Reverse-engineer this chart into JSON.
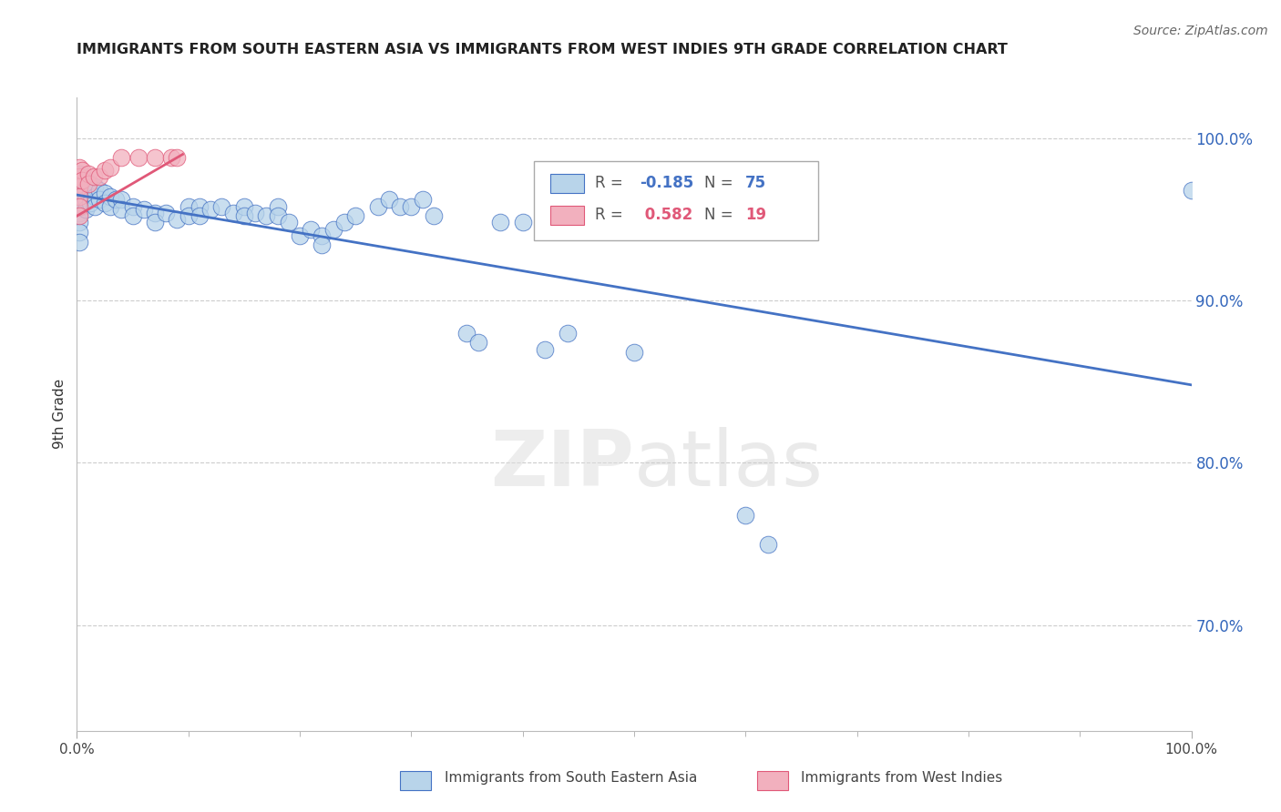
{
  "title": "IMMIGRANTS FROM SOUTH EASTERN ASIA VS IMMIGRANTS FROM WEST INDIES 9TH GRADE CORRELATION CHART",
  "source": "Source: ZipAtlas.com",
  "ylabel": "9th Grade",
  "xlim": [
    0.0,
    1.0
  ],
  "ylim": [
    0.635,
    1.025
  ],
  "ytick_labels": [
    "70.0%",
    "80.0%",
    "90.0%",
    "100.0%"
  ],
  "ytick_values": [
    0.7,
    0.8,
    0.9,
    1.0
  ],
  "xtick_labels": [
    "0.0%",
    "100.0%"
  ],
  "xtick_values": [
    0.0,
    1.0
  ],
  "r_blue": -0.185,
  "n_blue": 75,
  "r_pink": 0.582,
  "n_pink": 19,
  "blue_color": "#b8d4ea",
  "pink_color": "#f2b0be",
  "blue_edge_color": "#4472c4",
  "pink_edge_color": "#e05878",
  "blue_line_color": "#4472c4",
  "pink_line_color": "#e05878",
  "watermark_color": "#d8d8d8",
  "blue_scatter": [
    [
      0.002,
      0.978
    ],
    [
      0.002,
      0.972
    ],
    [
      0.002,
      0.966
    ],
    [
      0.002,
      0.96
    ],
    [
      0.002,
      0.954
    ],
    [
      0.002,
      0.948
    ],
    [
      0.002,
      0.942
    ],
    [
      0.002,
      0.936
    ],
    [
      0.005,
      0.976
    ],
    [
      0.005,
      0.97
    ],
    [
      0.005,
      0.964
    ],
    [
      0.005,
      0.958
    ],
    [
      0.008,
      0.974
    ],
    [
      0.008,
      0.968
    ],
    [
      0.008,
      0.962
    ],
    [
      0.008,
      0.956
    ],
    [
      0.012,
      0.972
    ],
    [
      0.012,
      0.966
    ],
    [
      0.012,
      0.96
    ],
    [
      0.016,
      0.97
    ],
    [
      0.016,
      0.964
    ],
    [
      0.016,
      0.958
    ],
    [
      0.02,
      0.968
    ],
    [
      0.02,
      0.962
    ],
    [
      0.025,
      0.966
    ],
    [
      0.025,
      0.96
    ],
    [
      0.03,
      0.964
    ],
    [
      0.03,
      0.958
    ],
    [
      0.035,
      0.962
    ],
    [
      0.04,
      0.962
    ],
    [
      0.04,
      0.956
    ],
    [
      0.05,
      0.958
    ],
    [
      0.05,
      0.952
    ],
    [
      0.06,
      0.956
    ],
    [
      0.07,
      0.954
    ],
    [
      0.07,
      0.948
    ],
    [
      0.08,
      0.954
    ],
    [
      0.09,
      0.95
    ],
    [
      0.1,
      0.958
    ],
    [
      0.1,
      0.952
    ],
    [
      0.11,
      0.958
    ],
    [
      0.11,
      0.952
    ],
    [
      0.12,
      0.956
    ],
    [
      0.13,
      0.958
    ],
    [
      0.14,
      0.954
    ],
    [
      0.15,
      0.958
    ],
    [
      0.15,
      0.952
    ],
    [
      0.16,
      0.954
    ],
    [
      0.17,
      0.952
    ],
    [
      0.18,
      0.958
    ],
    [
      0.18,
      0.952
    ],
    [
      0.19,
      0.948
    ],
    [
      0.2,
      0.94
    ],
    [
      0.21,
      0.944
    ],
    [
      0.22,
      0.94
    ],
    [
      0.22,
      0.934
    ],
    [
      0.23,
      0.944
    ],
    [
      0.24,
      0.948
    ],
    [
      0.25,
      0.952
    ],
    [
      0.27,
      0.958
    ],
    [
      0.28,
      0.962
    ],
    [
      0.29,
      0.958
    ],
    [
      0.3,
      0.958
    ],
    [
      0.31,
      0.962
    ],
    [
      0.32,
      0.952
    ],
    [
      0.35,
      0.88
    ],
    [
      0.36,
      0.874
    ],
    [
      0.38,
      0.948
    ],
    [
      0.4,
      0.948
    ],
    [
      0.42,
      0.87
    ],
    [
      0.44,
      0.88
    ],
    [
      0.5,
      0.868
    ],
    [
      0.6,
      0.768
    ],
    [
      0.62,
      0.75
    ],
    [
      1.0,
      0.968
    ]
  ],
  "pink_scatter": [
    [
      0.002,
      0.982
    ],
    [
      0.002,
      0.976
    ],
    [
      0.002,
      0.97
    ],
    [
      0.002,
      0.964
    ],
    [
      0.002,
      0.958
    ],
    [
      0.002,
      0.952
    ],
    [
      0.005,
      0.98
    ],
    [
      0.005,
      0.974
    ],
    [
      0.01,
      0.978
    ],
    [
      0.01,
      0.972
    ],
    [
      0.015,
      0.976
    ],
    [
      0.02,
      0.976
    ],
    [
      0.025,
      0.98
    ],
    [
      0.03,
      0.982
    ],
    [
      0.04,
      0.988
    ],
    [
      0.055,
      0.988
    ],
    [
      0.07,
      0.988
    ],
    [
      0.085,
      0.988
    ],
    [
      0.09,
      0.988
    ]
  ],
  "blue_line_x": [
    0.0,
    1.0
  ],
  "blue_line_y": [
    0.965,
    0.848
  ],
  "pink_line_x": [
    0.0,
    0.095
  ],
  "pink_line_y": [
    0.952,
    0.99
  ],
  "legend_blue_text": "R = -0.185  N = 75",
  "legend_pink_text": "R =  0.582  N = 19"
}
